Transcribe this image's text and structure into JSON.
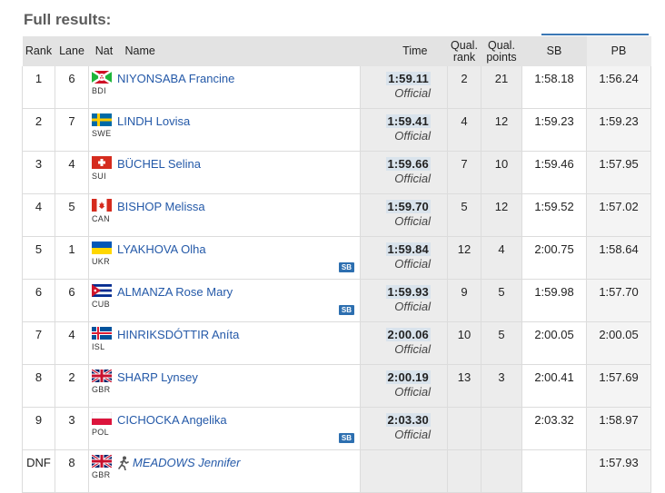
{
  "title": "Full results:",
  "headers": {
    "rank": "Rank",
    "lane": "Lane",
    "nat": "Nat",
    "name": "Name",
    "time": "Time",
    "qual_rank_1": "Qual.",
    "qual_rank_2": "rank",
    "qual_points_1": "Qual.",
    "qual_points_2": "points",
    "sb": "SB",
    "pb": "PB"
  },
  "colors": {
    "link": "#2459a8",
    "sb_badge": "#2d6fb0",
    "header_bg": "#e3e3e3",
    "accent_line": "#3b78b5"
  },
  "rows": [
    {
      "rank": "1",
      "lane": "6",
      "nat": "BDI",
      "flag": "burundi-flag-icon",
      "name": "NIYONSABA Francine",
      "time": "1:59.11",
      "status": "Official",
      "qual_rank": "2",
      "qual_points": "21",
      "sb": "1:58.18",
      "pb": "1:56.24",
      "badge": ""
    },
    {
      "rank": "2",
      "lane": "7",
      "nat": "SWE",
      "flag": "sweden-flag-icon",
      "name": "LINDH Lovisa",
      "time": "1:59.41",
      "status": "Official",
      "qual_rank": "4",
      "qual_points": "12",
      "sb": "1:59.23",
      "pb": "1:59.23",
      "badge": ""
    },
    {
      "rank": "3",
      "lane": "4",
      "nat": "SUI",
      "flag": "switzerland-flag-icon",
      "name": "BÜCHEL Selina",
      "time": "1:59.66",
      "status": "Official",
      "qual_rank": "7",
      "qual_points": "10",
      "sb": "1:59.46",
      "pb": "1:57.95",
      "badge": ""
    },
    {
      "rank": "4",
      "lane": "5",
      "nat": "CAN",
      "flag": "canada-flag-icon",
      "name": "BISHOP Melissa",
      "time": "1:59.70",
      "status": "Official",
      "qual_rank": "5",
      "qual_points": "12",
      "sb": "1:59.52",
      "pb": "1:57.02",
      "badge": ""
    },
    {
      "rank": "5",
      "lane": "1",
      "nat": "UKR",
      "flag": "ukraine-flag-icon",
      "name": "LYAKHOVA Olha",
      "time": "1:59.84",
      "status": "Official",
      "qual_rank": "12",
      "qual_points": "4",
      "sb": "2:00.75",
      "pb": "1:58.64",
      "badge": "SB"
    },
    {
      "rank": "6",
      "lane": "6",
      "nat": "CUB",
      "flag": "cuba-flag-icon",
      "name": "ALMANZA Rose Mary",
      "time": "1:59.93",
      "status": "Official",
      "qual_rank": "9",
      "qual_points": "5",
      "sb": "1:59.98",
      "pb": "1:57.70",
      "badge": "SB"
    },
    {
      "rank": "7",
      "lane": "4",
      "nat": "ISL",
      "flag": "iceland-flag-icon",
      "name": "HINRIKSDÓTTIR Aníta",
      "time": "2:00.06",
      "status": "Official",
      "qual_rank": "10",
      "qual_points": "5",
      "sb": "2:00.05",
      "pb": "2:00.05",
      "badge": ""
    },
    {
      "rank": "8",
      "lane": "2",
      "nat": "GBR",
      "flag": "uk-flag-icon",
      "name": "SHARP Lynsey",
      "time": "2:00.19",
      "status": "Official",
      "qual_rank": "13",
      "qual_points": "3",
      "sb": "2:00.41",
      "pb": "1:57.69",
      "badge": ""
    },
    {
      "rank": "9",
      "lane": "3",
      "nat": "POL",
      "flag": "poland-flag-icon",
      "name": "CICHOCKA Angelika",
      "time": "2:03.30",
      "status": "Official",
      "qual_rank": "",
      "qual_points": "",
      "sb": "2:03.32",
      "pb": "1:58.97",
      "badge": "SB"
    },
    {
      "rank": "DNF",
      "lane": "8",
      "nat": "GBR",
      "flag": "uk-flag-icon",
      "name": "MEADOWS Jennifer",
      "time": "",
      "status": "",
      "qual_rank": "",
      "qual_points": "",
      "sb": "",
      "pb": "1:57.93",
      "badge": "",
      "runner_icon": "runner-icon"
    }
  ]
}
